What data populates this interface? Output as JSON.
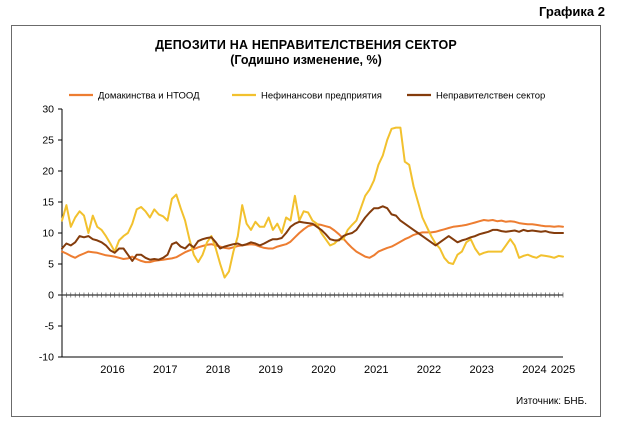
{
  "page_label": "Графика 2",
  "source": "Източник: БНБ.",
  "chart_data": {
    "type": "line",
    "title": "ДЕПОЗИТИ НА НЕПРАВИТЕЛСТВЕНИЯ СЕКТОР",
    "subtitle": "(Годишно изменение, %)",
    "ylim": [
      -10,
      30
    ],
    "yticks": [
      -10,
      -5,
      0,
      5,
      10,
      15,
      20,
      25,
      30
    ],
    "year_labels": [
      "2016",
      "2017",
      "2018",
      "2019",
      "2020",
      "2021",
      "2022",
      "2023",
      "2024",
      "2025"
    ],
    "x_start": "2015-07",
    "x_months": 115,
    "legend_position": "top",
    "grid": false,
    "series": [
      {
        "name": "Домакинства и НТООД",
        "color": "#ed7d31",
        "values": [
          7.0,
          6.7,
          6.3,
          6.0,
          6.4,
          6.7,
          7.0,
          6.9,
          6.8,
          6.6,
          6.4,
          6.3,
          6.2,
          6.0,
          5.8,
          5.9,
          6.2,
          5.8,
          5.5,
          5.3,
          5.3,
          5.5,
          5.6,
          5.7,
          5.8,
          5.9,
          6.1,
          6.5,
          6.9,
          7.2,
          7.4,
          7.7,
          7.9,
          8.1,
          8.2,
          8.0,
          7.8,
          7.6,
          7.5,
          7.7,
          7.9,
          8.0,
          8.1,
          8.2,
          8.1,
          7.8,
          7.6,
          7.5,
          7.5,
          7.8,
          8.0,
          8.2,
          8.6,
          9.3,
          10.0,
          10.6,
          11.1,
          11.3,
          11.4,
          11.3,
          11.1,
          10.9,
          10.4,
          9.8,
          9.1,
          8.3,
          7.6,
          7.0,
          6.6,
          6.2,
          6.0,
          6.4,
          7.0,
          7.3,
          7.6,
          7.8,
          8.2,
          8.6,
          9.0,
          9.3,
          9.7,
          9.9,
          10.1,
          10.1,
          10.1,
          10.2,
          10.4,
          10.6,
          10.8,
          11.0,
          11.1,
          11.2,
          11.3,
          11.5,
          11.7,
          11.9,
          12.1,
          12.0,
          12.1,
          11.9,
          12.0,
          11.8,
          11.9,
          11.8,
          11.6,
          11.5,
          11.4,
          11.4,
          11.3,
          11.2,
          11.1,
          11.1,
          11.0,
          11.1,
          11.0
        ]
      },
      {
        "name": "Нефинансови предприятия",
        "color": "#f2c12e",
        "values": [
          12.0,
          14.5,
          11.0,
          12.5,
          13.5,
          12.8,
          10.0,
          12.8,
          11.0,
          10.5,
          9.5,
          8.3,
          7.0,
          8.8,
          9.5,
          10.0,
          11.5,
          13.8,
          14.2,
          13.5,
          12.5,
          13.8,
          13.0,
          12.7,
          12.0,
          15.5,
          16.2,
          14.0,
          12.0,
          9.0,
          6.5,
          5.3,
          6.5,
          8.5,
          9.5,
          7.5,
          5.0,
          2.8,
          3.8,
          7.0,
          9.5,
          14.5,
          11.5,
          10.5,
          11.8,
          11.0,
          11.0,
          12.5,
          10.5,
          11.5,
          10.0,
          12.5,
          12.0,
          16.0,
          12.0,
          13.5,
          13.3,
          12.0,
          11.5,
          10.0,
          9.0,
          8.0,
          8.3,
          9.0,
          9.0,
          10.5,
          11.3,
          12.0,
          14.0,
          16.0,
          17.0,
          18.5,
          21.0,
          22.5,
          25.0,
          26.8,
          27.0,
          27.0,
          21.5,
          21.0,
          17.5,
          15.0,
          12.5,
          11.0,
          9.5,
          8.3,
          7.5,
          6.0,
          5.2,
          5.0,
          6.5,
          7.0,
          8.5,
          9.0,
          7.5,
          6.5,
          6.8,
          7.0,
          7.0,
          7.0,
          7.0,
          8.0,
          9.0,
          8.0,
          6.0,
          6.3,
          6.5,
          6.2,
          6.0,
          6.4,
          6.3,
          6.2,
          6.0,
          6.3,
          6.2
        ]
      },
      {
        "name": "Неправителствен сектор",
        "color": "#843c0c",
        "values": [
          7.5,
          8.3,
          8.0,
          8.5,
          9.5,
          9.3,
          9.5,
          9.0,
          8.8,
          8.5,
          8.0,
          7.2,
          6.8,
          7.5,
          7.5,
          6.5,
          5.5,
          6.5,
          6.5,
          6.0,
          5.7,
          5.8,
          5.7,
          6.0,
          6.5,
          8.2,
          8.5,
          7.8,
          7.5,
          8.2,
          7.7,
          8.7,
          9.0,
          9.2,
          9.3,
          8.5,
          7.5,
          7.8,
          8.0,
          8.2,
          8.3,
          8.0,
          8.2,
          8.5,
          8.3,
          8.0,
          8.3,
          8.7,
          9.0,
          9.0,
          9.2,
          10.0,
          11.0,
          11.5,
          11.8,
          11.7,
          11.6,
          11.5,
          11.0,
          10.5,
          9.8,
          9.0,
          8.8,
          8.8,
          9.5,
          9.8,
          10.0,
          10.5,
          11.5,
          12.5,
          13.3,
          14.0,
          14.0,
          14.3,
          14.0,
          13.0,
          12.8,
          12.0,
          11.5,
          11.0,
          10.5,
          10.0,
          9.5,
          9.0,
          8.5,
          8.0,
          8.5,
          9.0,
          9.5,
          9.0,
          8.5,
          8.8,
          9.0,
          9.3,
          9.5,
          9.8,
          10.0,
          10.2,
          10.5,
          10.5,
          10.3,
          10.2,
          10.3,
          10.4,
          10.2,
          10.5,
          10.3,
          10.4,
          10.3,
          10.2,
          10.3,
          10.1,
          10.0,
          10.0,
          10.0
        ]
      }
    ]
  }
}
